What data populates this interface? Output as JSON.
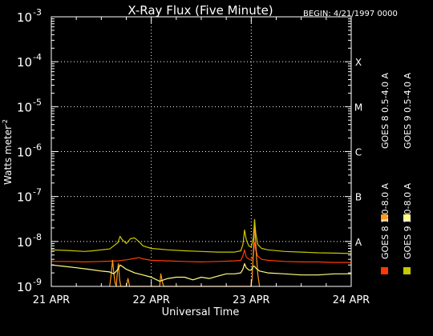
{
  "chart_data": {
    "type": "line",
    "title": "X-Ray Flux (Five Minute)",
    "begin_label": "BEGIN: 4/21/1997 0000",
    "xlabel": "Universal Time",
    "ylabel": "Watts meter^-2",
    "ylabel_text": "Watts meter",
    "ylabel_power": "-2",
    "ylog": true,
    "ylim": [
      1e-09,
      0.001
    ],
    "xlim": [
      0,
      72
    ],
    "x_unit": "hours since 21 Apr 1997 00:00 UT",
    "x_ticks": [
      {
        "value": 0,
        "label": "21 APR"
      },
      {
        "value": 24,
        "label": "22 APR"
      },
      {
        "value": 48,
        "label": "23 APR"
      },
      {
        "value": 72,
        "label": "24 APR"
      }
    ],
    "y_ticks": [
      {
        "exp": -9,
        "label": "10",
        "power": "-9"
      },
      {
        "exp": -8,
        "label": "10",
        "power": "-8"
      },
      {
        "exp": -7,
        "label": "10",
        "power": "-7"
      },
      {
        "exp": -6,
        "label": "10",
        "power": "-6"
      },
      {
        "exp": -5,
        "label": "10",
        "power": "-5"
      },
      {
        "exp": -4,
        "label": "10",
        "power": "-4"
      },
      {
        "exp": -3,
        "label": "10",
        "power": "-3"
      }
    ],
    "flare_classes": [
      {
        "label": "A",
        "exp": -8
      },
      {
        "label": "B",
        "exp": -7
      },
      {
        "label": "C",
        "exp": -6
      },
      {
        "label": "M",
        "exp": -5
      },
      {
        "label": "X",
        "exp": -4
      }
    ],
    "grid": "dotted, horizontal at each decade, vertical at each day",
    "legend_position": "right, vertical",
    "series": [
      {
        "name": "GOES 8 1.0-8.0 A",
        "color": "#ff3a00",
        "points": [
          [
            0,
            3.6e-09
          ],
          [
            4,
            3.6e-09
          ],
          [
            8,
            3.5e-09
          ],
          [
            12,
            3.6e-09
          ],
          [
            16,
            3.7e-09
          ],
          [
            18,
            3.9e-09
          ],
          [
            20,
            4.2e-09
          ],
          [
            21,
            4.4e-09
          ],
          [
            22,
            4.1e-09
          ],
          [
            24,
            3.8e-09
          ],
          [
            28,
            3.7e-09
          ],
          [
            32,
            3.6e-09
          ],
          [
            36,
            3.5e-09
          ],
          [
            40,
            3.6e-09
          ],
          [
            44,
            3.7e-09
          ],
          [
            45.5,
            3.8e-09
          ],
          [
            46,
            4.8e-09
          ],
          [
            46.4,
            6.5e-09
          ],
          [
            46.8,
            4.5e-09
          ],
          [
            47.5,
            4e-09
          ],
          [
            48,
            4e-09
          ],
          [
            48.5,
            4.6e-09
          ],
          [
            48.8,
            9.5e-09
          ],
          [
            49.1,
            6.5e-09
          ],
          [
            49.5,
            4.8e-09
          ],
          [
            50.5,
            4e-09
          ],
          [
            52,
            3.8e-09
          ],
          [
            56,
            3.6e-09
          ],
          [
            60,
            3.5e-09
          ],
          [
            64,
            3.5e-09
          ],
          [
            68,
            3.4e-09
          ],
          [
            72,
            3.4e-09
          ]
        ]
      },
      {
        "name": "GOES 8 0.5-4.0 A",
        "color": "#ff9a1e",
        "points": [
          [
            14,
            1e-09
          ],
          [
            14.3,
            1.6e-09
          ],
          [
            14.7,
            3.8e-09
          ],
          [
            15.0,
            2e-09
          ],
          [
            15.3,
            1.2e-09
          ],
          [
            15.6,
            1e-09
          ],
          [
            15.8,
            1.8e-09
          ],
          [
            16.1,
            3.2e-09
          ],
          [
            16.4,
            1.4e-09
          ],
          [
            16.7,
            1e-09
          ],
          [
            18,
            1e-09
          ],
          [
            18.4,
            1.5e-09
          ],
          [
            18.8,
            1e-09
          ],
          [
            24,
            1e-09
          ],
          [
            26.0,
            1e-09
          ],
          [
            26.3,
            1.9e-09
          ],
          [
            26.7,
            1.2e-09
          ],
          [
            27.0,
            1e-09
          ],
          [
            47.9,
            1e-09
          ],
          [
            48.2,
            1.5e-09
          ],
          [
            48.6,
            9e-09
          ],
          [
            48.8,
            3.1e-08
          ],
          [
            49.0,
            1.2e-08
          ],
          [
            49.3,
            4e-09
          ],
          [
            49.6,
            1.8e-09
          ],
          [
            50.0,
            1e-09
          ]
        ]
      },
      {
        "name": "GOES 9 1.0-8.0 A",
        "color": "#c8c800",
        "points": [
          [
            0,
            6.5e-09
          ],
          [
            4,
            6.3e-09
          ],
          [
            8,
            6e-09
          ],
          [
            10,
            6.2e-09
          ],
          [
            12,
            6.5e-09
          ],
          [
            14,
            6.8e-09
          ],
          [
            15,
            8e-09
          ],
          [
            16,
            9.5e-09
          ],
          [
            16.5,
            1.3e-08
          ],
          [
            17,
            1.1e-08
          ],
          [
            17.5,
            1e-08
          ],
          [
            18,
            9e-09
          ],
          [
            19,
            1.15e-08
          ],
          [
            20,
            1.2e-08
          ],
          [
            21,
            1e-08
          ],
          [
            22,
            8e-09
          ],
          [
            24,
            7e-09
          ],
          [
            28,
            6.5e-09
          ],
          [
            32,
            6.2e-09
          ],
          [
            36,
            6e-09
          ],
          [
            40,
            5.8e-09
          ],
          [
            44,
            5.8e-09
          ],
          [
            45.5,
            6.2e-09
          ],
          [
            46,
            8.5e-09
          ],
          [
            46.4,
            1.8e-08
          ],
          [
            46.8,
            1.1e-08
          ],
          [
            47.4,
            8e-09
          ],
          [
            48,
            7.5e-09
          ],
          [
            48.5,
            1.2e-08
          ],
          [
            48.8,
            3e-08
          ],
          [
            49.1,
            1.5e-08
          ],
          [
            49.6,
            8.5e-09
          ],
          [
            50.5,
            7e-09
          ],
          [
            52,
            6.5e-09
          ],
          [
            56,
            6e-09
          ],
          [
            60,
            5.8e-09
          ],
          [
            64,
            5.6e-09
          ],
          [
            68,
            5.5e-09
          ],
          [
            72,
            5.4e-09
          ]
        ]
      },
      {
        "name": "GOES 9 0.5-4.0 A",
        "color": "#ffff80",
        "points": [
          [
            0,
            3e-09
          ],
          [
            3,
            2.8e-09
          ],
          [
            6,
            2.6e-09
          ],
          [
            9,
            2.4e-09
          ],
          [
            12,
            2.2e-09
          ],
          [
            14,
            2.1e-09
          ],
          [
            15,
            1.9e-09
          ],
          [
            16,
            2.4e-09
          ],
          [
            16.5,
            3e-09
          ],
          [
            17,
            2.8e-09
          ],
          [
            18,
            2.4e-09
          ],
          [
            20,
            2e-09
          ],
          [
            22,
            1.8e-09
          ],
          [
            24,
            1.6e-09
          ],
          [
            26,
            1.3e-09
          ],
          [
            28,
            1.5e-09
          ],
          [
            30,
            1.6e-09
          ],
          [
            32,
            1.6e-09
          ],
          [
            34,
            1.4e-09
          ],
          [
            36,
            1.6e-09
          ],
          [
            38,
            1.5e-09
          ],
          [
            40,
            1.7e-09
          ],
          [
            42,
            1.9e-09
          ],
          [
            44,
            1.9e-09
          ],
          [
            45.5,
            2e-09
          ],
          [
            46,
            2.4e-09
          ],
          [
            46.4,
            3.2e-09
          ],
          [
            46.8,
            2.6e-09
          ],
          [
            47.5,
            2.3e-09
          ],
          [
            48,
            2.3e-09
          ],
          [
            48.5,
            2.8e-09
          ],
          [
            48.8,
            2.8e-09
          ],
          [
            49.2,
            2.5e-09
          ],
          [
            50,
            2.2e-09
          ],
          [
            52,
            2e-09
          ],
          [
            56,
            1.9e-09
          ],
          [
            60,
            1.8e-09
          ],
          [
            64,
            1.8e-09
          ],
          [
            68,
            1.9e-09
          ],
          [
            72,
            1.9e-09
          ]
        ]
      }
    ]
  }
}
